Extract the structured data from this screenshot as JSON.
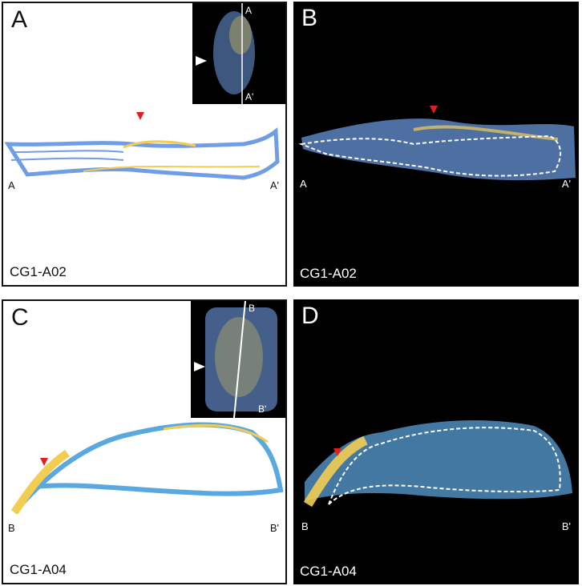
{
  "panels": {
    "a": {
      "label": "A",
      "sample": "CG1-A02",
      "start": "A",
      "end": "A'"
    },
    "b": {
      "label": "B",
      "sample": "CG1-A02",
      "start": "A",
      "end": "A'"
    },
    "c": {
      "label": "C",
      "sample": "CG1-A04",
      "start": "B",
      "end": "B'"
    },
    "d": {
      "label": "D",
      "sample": "CG1-A04",
      "start": "B",
      "end": "B'"
    }
  },
  "insets": {
    "a": {
      "top": "A",
      "bottom": "A'"
    },
    "c": {
      "top": "B",
      "bottom": "B'"
    }
  },
  "colors": {
    "blue": "#6f9ee6",
    "yellow": "#f3cd52",
    "arrow_red": "#e02020",
    "outline": "#ffffff"
  }
}
